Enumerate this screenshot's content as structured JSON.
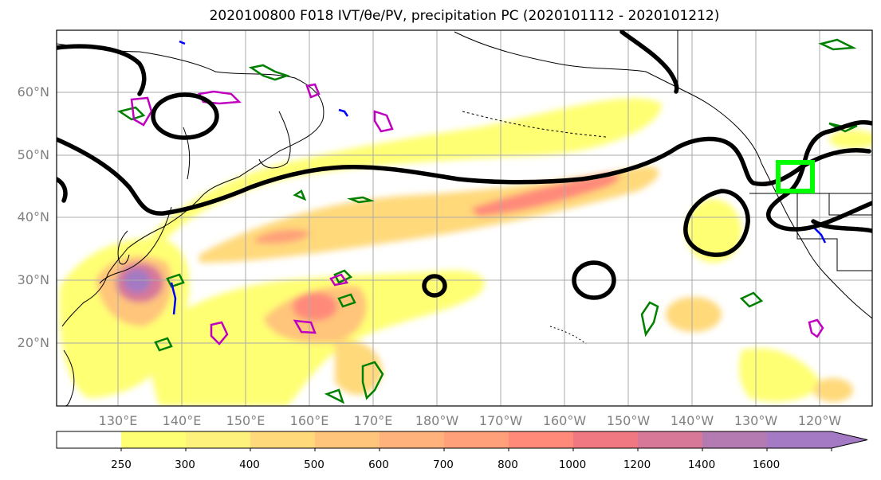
{
  "title": "2020100800 F018 IVT/θe/PV, precipitation PC (2020101112 - 2020101212)",
  "lat_labels": [
    "60°N",
    "50°N",
    "40°N",
    "30°N",
    "20°N"
  ],
  "lon_labels": [
    "130°E",
    "140°E",
    "150°E",
    "160°E",
    "170°E",
    "180°W",
    "170°W",
    "160°W",
    "150°W",
    "140°W",
    "130°W",
    "120°W"
  ],
  "colorbar": {
    "labels": [
      "250",
      "300",
      "400",
      "500",
      "600",
      "700",
      "800",
      "1000",
      "1200",
      "1400",
      "1600"
    ],
    "colors": [
      "#ffff73",
      "#fff27c",
      "#ffd97a",
      "#ffc57a",
      "#ffb27c",
      "#ffa07a",
      "#ff8a7a",
      "#f07882",
      "#d87898",
      "#b47ab2",
      "#a37ac3"
    ]
  },
  "colors": {
    "ivt_contour": "#000000",
    "theta_e_contour": "#008000",
    "pv_contour": "#c000c0",
    "blue_contour": "#0000ff",
    "target_box": "#00ff00",
    "coastline": "#000000",
    "grid": "#aaaaaa"
  }
}
